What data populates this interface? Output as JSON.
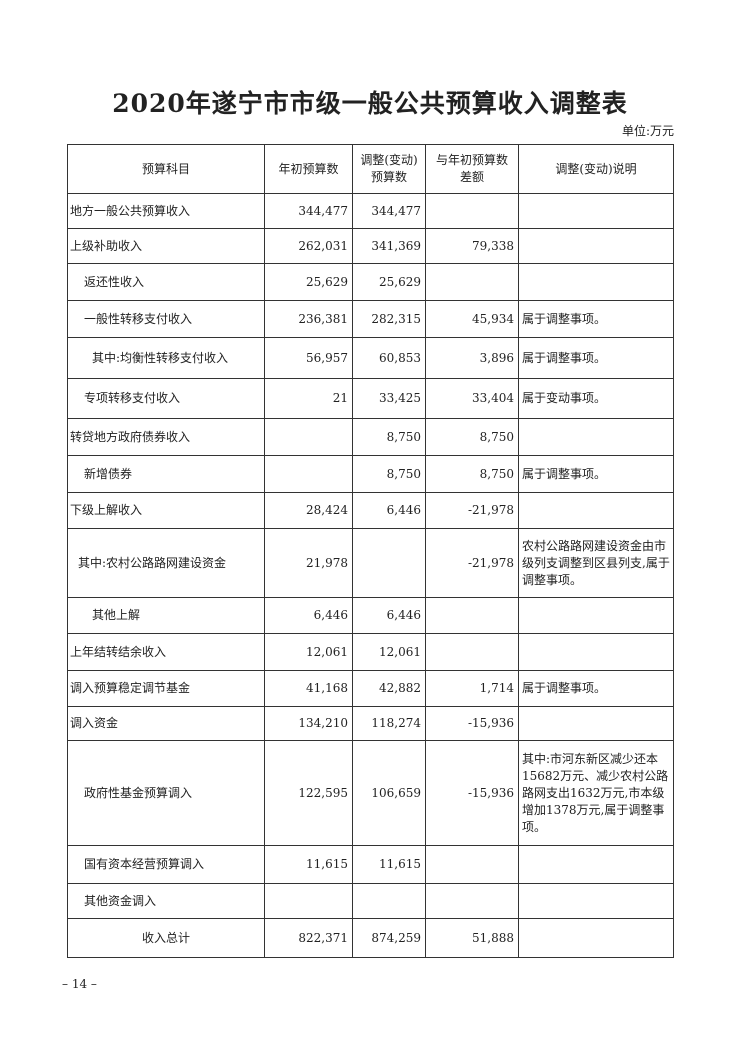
{
  "title": "2020年遂宁市市级一般公共预算收入调整表",
  "unit": "单位:万元",
  "headers": [
    "预算科目",
    "年初预算数",
    "调整(变动)预算数",
    "与年初预算数差额",
    "调整(变动)说明"
  ],
  "rows": [
    {
      "name": "地方一般公共预算收入",
      "initial": "344,477",
      "adjusted": "344,477",
      "diff": "",
      "note": ""
    },
    {
      "name": "上级补助收入",
      "initial": "262,031",
      "adjusted": "341,369",
      "diff": "79,338",
      "note": ""
    },
    {
      "name": "返还性收入",
      "initial": "25,629",
      "adjusted": "25,629",
      "diff": "",
      "note": ""
    },
    {
      "name": "一般性转移支付收入",
      "initial": "236,381",
      "adjusted": "282,315",
      "diff": "45,934",
      "note": "属于调整事项。"
    },
    {
      "name": "其中:均衡性转移支付收入",
      "initial": "56,957",
      "adjusted": "60,853",
      "diff": "3,896",
      "note": "属于调整事项。"
    },
    {
      "name": "专项转移支付收入",
      "initial": "21",
      "adjusted": "33,425",
      "diff": "33,404",
      "note": "属于变动事项。"
    },
    {
      "name": "转贷地方政府债券收入",
      "initial": "",
      "adjusted": "8,750",
      "diff": "8,750",
      "note": ""
    },
    {
      "name": "新增债券",
      "initial": "",
      "adjusted": "8,750",
      "diff": "8,750",
      "note": "属于调整事项。"
    },
    {
      "name": "下级上解收入",
      "initial": "28,424",
      "adjusted": "6,446",
      "diff": "-21,978",
      "note": ""
    },
    {
      "name": "其中:农村公路路网建设资金",
      "initial": "21,978",
      "adjusted": "",
      "diff": "-21,978",
      "note": "农村公路路网建设资金由市级列支调整到区县列支,属于调整事项。"
    },
    {
      "name": "其他上解",
      "initial": "6,446",
      "adjusted": "6,446",
      "diff": "",
      "note": ""
    },
    {
      "name": "上年结转结余收入",
      "initial": "12,061",
      "adjusted": "12,061",
      "diff": "",
      "note": ""
    },
    {
      "name": "调入预算稳定调节基金",
      "initial": "41,168",
      "adjusted": "42,882",
      "diff": "1,714",
      "note": "属于调整事项。"
    },
    {
      "name": "调入资金",
      "initial": "134,210",
      "adjusted": "118,274",
      "diff": "-15,936",
      "note": ""
    },
    {
      "name": "政府性基金预算调入",
      "initial": "122,595",
      "adjusted": "106,659",
      "diff": "-15,936",
      "note": "其中:市河东新区减少还本15682万元、减少农村公路路网支出1632万元,市本级增加1378万元,属于调整事项。"
    },
    {
      "name": "国有资本经营预算调入",
      "initial": "11,615",
      "adjusted": "11,615",
      "diff": "",
      "note": ""
    },
    {
      "name": "其他资金调入",
      "initial": "",
      "adjusted": "",
      "diff": "",
      "note": ""
    },
    {
      "name": "收入总计",
      "initial": "822,371",
      "adjusted": "874,259",
      "diff": "51,888",
      "note": ""
    }
  ],
  "page_number": "– 14 –"
}
